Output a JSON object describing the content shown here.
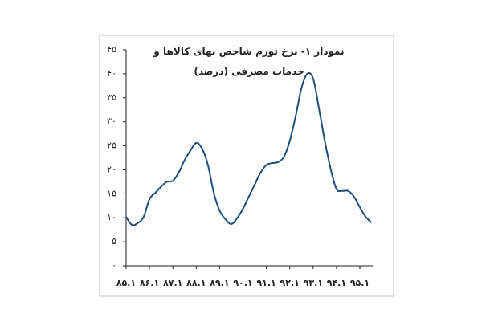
{
  "chart_data": {
    "type": "line",
    "title": "نمودار ۱- نرخ تورم شاخص بهای کالاها و خدمات مصرفی (درصد)",
    "categories": [
      "۸۵.۱",
      null,
      null,
      null,
      "۸۶.۱",
      null,
      null,
      null,
      "۸۷.۱",
      null,
      null,
      null,
      "۸۸.۱",
      null,
      null,
      null,
      "۸۹.۱",
      null,
      null,
      null,
      "۹۰.۱",
      null,
      null,
      null,
      "۹۱.۱",
      null,
      null,
      null,
      "۹۲.۱",
      null,
      null,
      null,
      "۹۳.۱",
      null,
      null,
      null,
      "۹۴.۱",
      null,
      null,
      null,
      "۹۵.۱",
      null,
      null
    ],
    "values": [
      10.2,
      8.5,
      8.9,
      10.2,
      13.9,
      15.2,
      16.5,
      17.5,
      17.7,
      19.4,
      22,
      24,
      25.6,
      24.4,
      21,
      15.2,
      11.5,
      9.7,
      8.7,
      9.9,
      11.9,
      14.4,
      16.9,
      19.4,
      21,
      21.4,
      21.6,
      22.7,
      26,
      31.1,
      37,
      40,
      39,
      32.8,
      26,
      20.2,
      16,
      15.6,
      15.6,
      14.4,
      12.2,
      10.2,
      9
    ],
    "color": "#1f4e79",
    "ylim": [
      0,
      45
    ],
    "yticks": [
      {
        "value": 0,
        "label": "۰"
      },
      {
        "value": 5,
        "label": "۵"
      },
      {
        "value": 10,
        "label": "۱۰"
      },
      {
        "value": 15,
        "label": "۱۵"
      },
      {
        "value": 20,
        "label": "۲۰"
      },
      {
        "value": 25,
        "label": "۲۵"
      },
      {
        "value": 30,
        "label": "۳۰"
      },
      {
        "value": 35,
        "label": "۳۵"
      },
      {
        "value": 40,
        "label": "۴۰"
      },
      {
        "value": 45,
        "label": "۴۵"
      }
    ]
  }
}
